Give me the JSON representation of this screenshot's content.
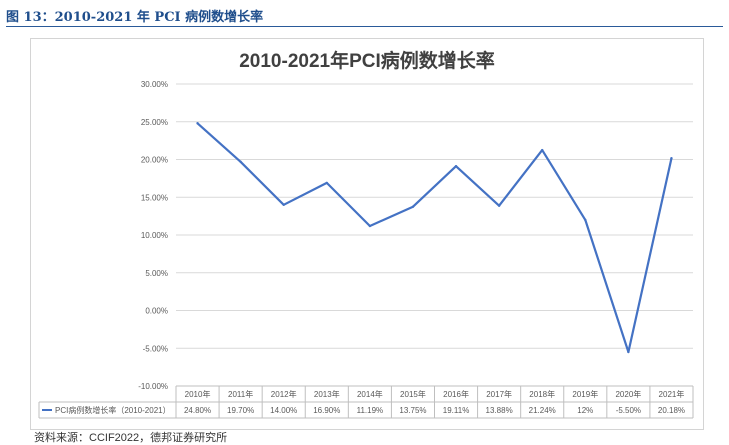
{
  "figure_caption": "图 13：2010-2021 年 PCI 病例数增长率",
  "source_text": "资料来源：CCIF2022，德邦证券研究所",
  "colors": {
    "line": "#4472c4",
    "grid": "#d9d9d9",
    "caption": "#1f4e8c"
  },
  "chart_data": {
    "type": "line",
    "title": "2010-2021年PCI病例数增长率",
    "categories": [
      "2010年",
      "2011年",
      "2012年",
      "2013年",
      "2014年",
      "2015年",
      "2016年",
      "2017年",
      "2018年",
      "2019年",
      "2020年",
      "2021年"
    ],
    "series": [
      {
        "name": "PCI病例数增长率（2010-2021）",
        "values": [
          24.8,
          19.7,
          14.0,
          16.9,
          11.19,
          13.75,
          19.11,
          13.88,
          21.24,
          12.0,
          -5.5,
          20.18
        ],
        "labels": [
          "24.80%",
          "19.70%",
          "14.00%",
          "16.90%",
          "11.19%",
          "13.75%",
          "19.11%",
          "13.88%",
          "21.24%",
          "12%",
          "-5.50%",
          "20.18%"
        ]
      }
    ],
    "ylim": [
      -10,
      30
    ],
    "yticks": [
      "-10.00%",
      "-5.00%",
      "0.00%",
      "5.00%",
      "10.00%",
      "15.00%",
      "20.00%",
      "25.00%",
      "30.00%"
    ],
    "grid": true,
    "legend": "data-table-below"
  }
}
